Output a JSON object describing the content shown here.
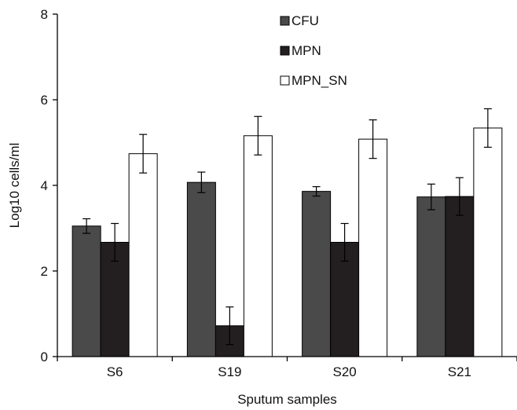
{
  "chart_data": {
    "type": "bar",
    "title": "",
    "xlabel": "Sputum samples",
    "ylabel": "Log10 cells/ml",
    "ylim": [
      0,
      8
    ],
    "yticks": [
      0,
      2,
      4,
      6,
      8
    ],
    "categories": [
      "S6",
      "S19",
      "S20",
      "S21"
    ],
    "series": [
      {
        "name": "CFU",
        "color": "#4a4a4a",
        "values": [
          3.05,
          4.07,
          3.86,
          3.73
        ],
        "errors": [
          0.17,
          0.24,
          0.11,
          0.3
        ]
      },
      {
        "name": "MPN",
        "color": "#231f20",
        "values": [
          2.67,
          0.72,
          2.67,
          3.74
        ],
        "errors": [
          0.44,
          0.44,
          0.44,
          0.44
        ]
      },
      {
        "name": "MPN_SN",
        "color": "#ffffff",
        "values": [
          4.74,
          5.16,
          5.08,
          5.34
        ],
        "errors": [
          0.45,
          0.45,
          0.45,
          0.45
        ]
      }
    ],
    "legend_position": "top-center",
    "grid": false
  }
}
